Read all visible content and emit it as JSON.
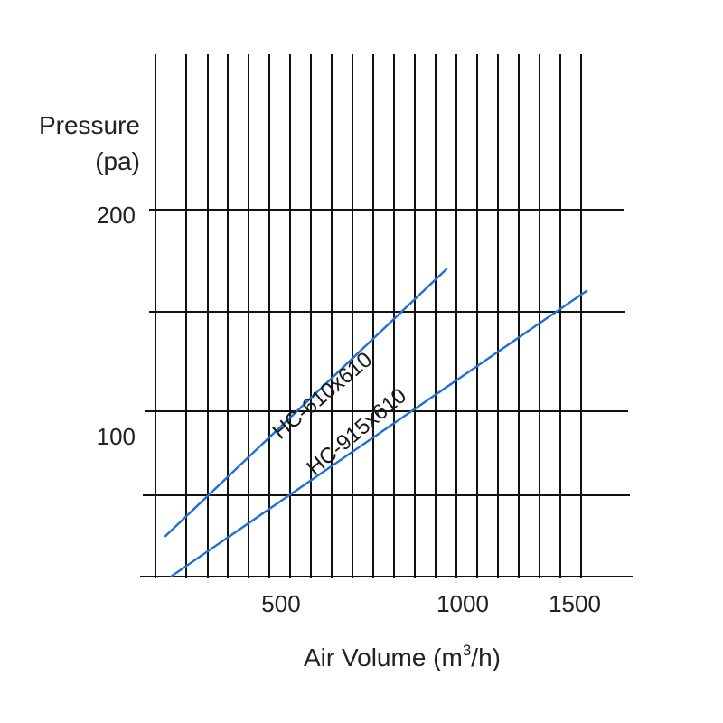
{
  "chart_data": {
    "type": "line",
    "title": "",
    "ylabel_line1": "Pressure",
    "ylabel_line2": "(pa)",
    "xlabel_main": "Air Volume (m",
    "xlabel_sup": "3",
    "xlabel_end": "/h)",
    "x_ticks": [
      {
        "value": 500,
        "label": "500"
      },
      {
        "value": 1000,
        "label": "1000"
      },
      {
        "value": 1500,
        "label": "1500"
      }
    ],
    "y_ticks": [
      {
        "value": 100,
        "label": "100"
      },
      {
        "value": 200,
        "label": "200"
      }
    ],
    "xlim": [
      100,
      1550
    ],
    "ylim": [
      0,
      240
    ],
    "grid": true,
    "line_color": "#1f6fd6",
    "series": [
      {
        "name": "HC-610x610",
        "x": [
          180,
          1095
        ],
        "y": [
          22,
          170
        ]
      },
      {
        "name": "HC-915x610",
        "x": [
          200,
          1550
        ],
        "y": [
          0,
          158
        ]
      }
    ]
  }
}
